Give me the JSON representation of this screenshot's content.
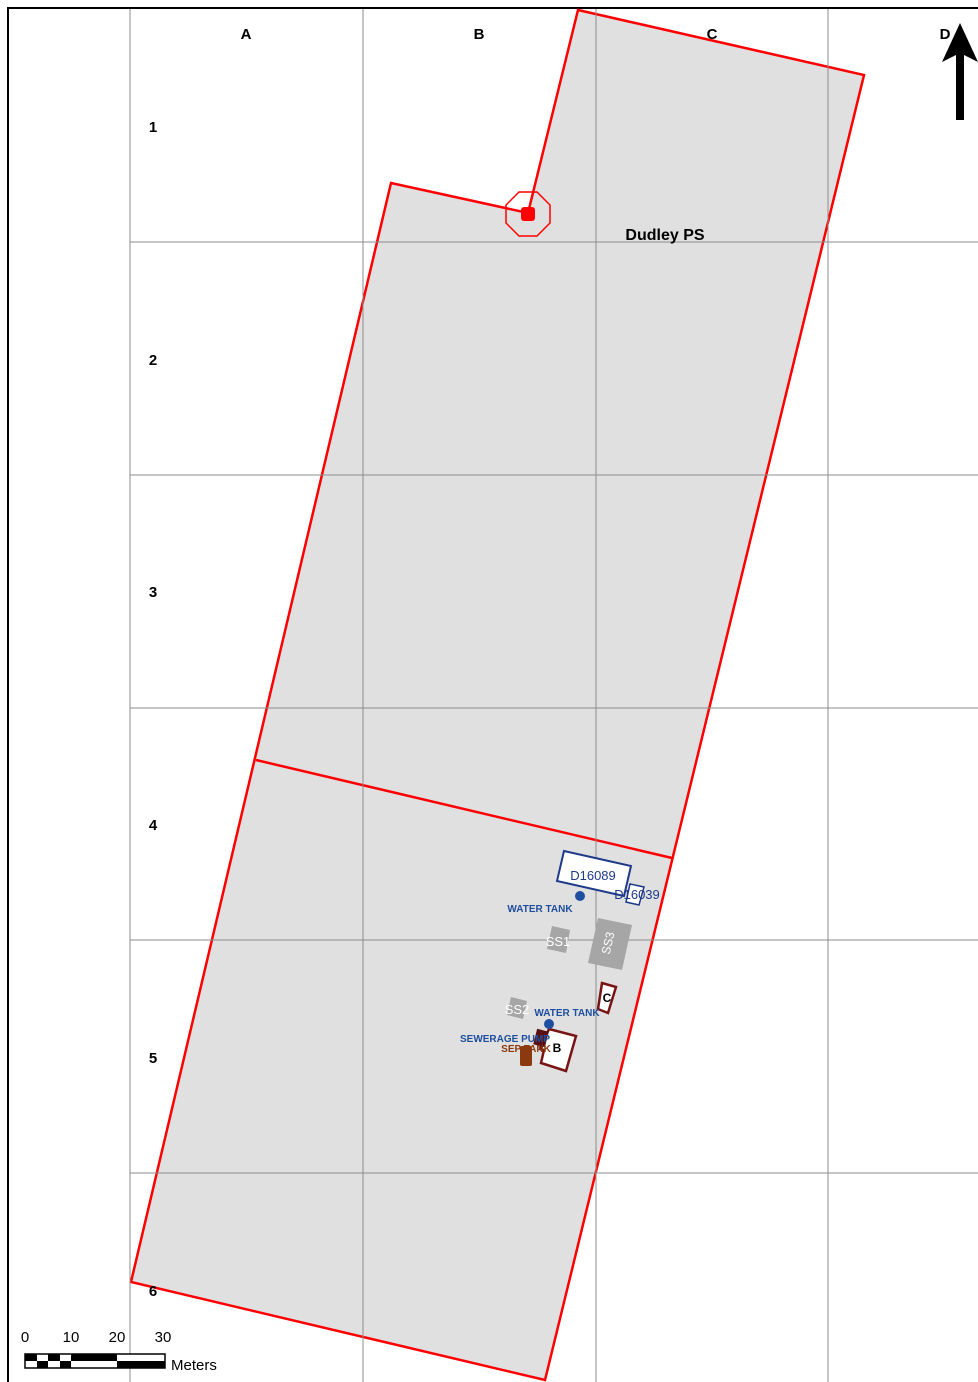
{
  "map": {
    "site_name": "Dudley PS",
    "grid": {
      "columns": [
        "A",
        "B",
        "C",
        "D"
      ],
      "rows": [
        "1",
        "2",
        "3",
        "4",
        "5",
        "6"
      ]
    },
    "north_arrow": {
      "icon": "north-arrow-icon"
    },
    "features": {
      "buildings": [
        {
          "label": "D16089",
          "color": "#1f3a8a"
        },
        {
          "label": "D16039",
          "color": "#1f3a8a"
        },
        {
          "label": "C",
          "color": "#7a1414"
        },
        {
          "label": "B",
          "color": "#7a1414"
        }
      ],
      "points": [
        {
          "label": "WATER TANK",
          "color": "#1f4fa0"
        },
        {
          "label": "WATER TANK",
          "color": "#1f4fa0"
        },
        {
          "label": "SEWERAGE PUMP",
          "color": "#1f4fa0"
        },
        {
          "label": "SEP TANK",
          "color": "#8b3a10"
        }
      ],
      "zones": [
        {
          "label": "SS1"
        },
        {
          "label": "SS2"
        },
        {
          "label": "SS3"
        }
      ]
    },
    "colors": {
      "boundary": "#ff0000",
      "site_fill": "#e0e0e0",
      "grid": "#8c8c8c",
      "building_blue": "#1f3a8a",
      "building_red": "#7a1414",
      "zone_fill": "#a6a6a6"
    },
    "scale_bar": {
      "ticks": [
        "0",
        "10",
        "20",
        "30"
      ],
      "unit": "Meters"
    }
  }
}
